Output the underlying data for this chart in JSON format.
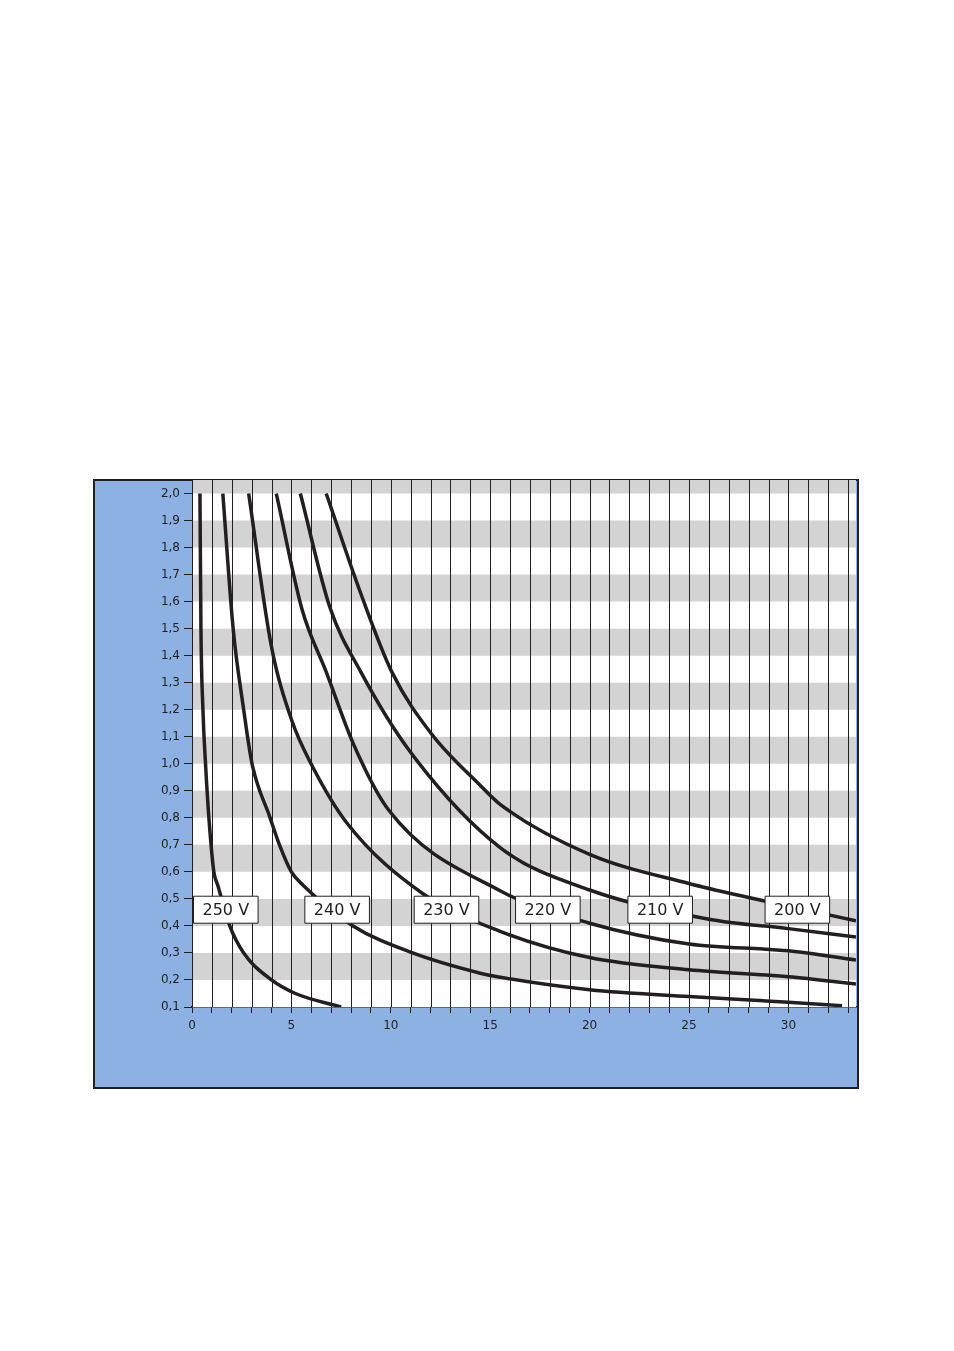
{
  "chart_data": {
    "type": "line",
    "xlim": [
      0,
      33.4
    ],
    "ylim": [
      0.1,
      2.05
    ],
    "grid": true,
    "legend": false,
    "marker": "none",
    "line_style": "solid",
    "xticks": [
      0,
      {
        "value": 1,
        "label": null
      },
      {
        "value": 2,
        "label": null
      },
      {
        "value": 3,
        "label": null
      },
      {
        "value": 4,
        "label": null
      },
      5,
      {
        "value": 6,
        "label": null
      },
      {
        "value": 7,
        "label": null
      },
      {
        "value": 8,
        "label": null
      },
      {
        "value": 9,
        "label": null
      },
      10,
      {
        "value": 11,
        "label": null
      },
      {
        "value": 12,
        "label": null
      },
      {
        "value": 13,
        "label": null
      },
      {
        "value": 14,
        "label": null
      },
      15,
      {
        "value": 16,
        "label": null
      },
      {
        "value": 17,
        "label": null
      },
      {
        "value": 18,
        "label": null
      },
      {
        "value": 19,
        "label": null
      },
      20,
      {
        "value": 21,
        "label": null
      },
      {
        "value": 22,
        "label": null
      },
      {
        "value": 23,
        "label": null
      },
      {
        "value": 24,
        "label": null
      },
      25,
      {
        "value": 26,
        "label": null
      },
      {
        "value": 27,
        "label": null
      },
      {
        "value": 28,
        "label": null
      },
      {
        "value": 29,
        "label": null
      },
      30,
      {
        "value": 31,
        "label": null
      },
      {
        "value": 32,
        "label": null
      },
      {
        "value": 33,
        "label": null
      }
    ],
    "yticks": [
      {
        "value": 0.1,
        "label": "0,1"
      },
      {
        "value": 0.2,
        "label": "0,2"
      },
      {
        "value": 0.3,
        "label": "0,3"
      },
      {
        "value": 0.4,
        "label": "0,4"
      },
      {
        "value": 0.5,
        "label": "0,5"
      },
      {
        "value": 0.6,
        "label": "0,6"
      },
      {
        "value": 0.7,
        "label": "0,7"
      },
      {
        "value": 0.8,
        "label": "0,8"
      },
      {
        "value": 0.9,
        "label": "0,9"
      },
      {
        "value": 1.0,
        "label": "1,0"
      },
      {
        "value": 1.1,
        "label": "1,1"
      },
      {
        "value": 1.2,
        "label": "1,2"
      },
      {
        "value": 1.3,
        "label": "1,3"
      },
      {
        "value": 1.4,
        "label": "1,4"
      },
      {
        "value": 1.5,
        "label": "1,5"
      },
      {
        "value": 1.6,
        "label": "1,6"
      },
      {
        "value": 1.7,
        "label": "1,7"
      },
      {
        "value": 1.8,
        "label": "1,8"
      },
      {
        "value": 1.9,
        "label": "1,9"
      },
      {
        "value": 2.0,
        "label": "2,0"
      }
    ],
    "series": [
      {
        "color": "#231f20",
        "x": [
          0.4,
          0.45,
          0.55,
          0.68,
          0.85,
          1.1,
          1.3,
          1.9,
          2.6,
          4.0,
          5.2,
          7.5
        ],
        "values": [
          2.0,
          1.5,
          1.2,
          1.0,
          0.8,
          0.6,
          0.55,
          0.4,
          0.3,
          0.2,
          0.15,
          0.1
        ]
      },
      {
        "color": "#231f20",
        "x": [
          1.55,
          2.07,
          2.6,
          3.02,
          3.93,
          4.4,
          5.0,
          5.6,
          8.1,
          11.1,
          14.5,
          15.5,
          20,
          25,
          30,
          32.7
        ],
        "values": [
          2.0,
          1.5,
          1.2,
          1.0,
          0.8,
          0.7,
          0.6,
          0.55,
          0.4,
          0.3,
          0.225,
          0.21,
          0.164,
          0.139,
          0.118,
          0.105
        ]
      },
      {
        "color": "#231f20",
        "x": [
          2.85,
          3.98,
          5.02,
          6.06,
          7.8,
          11.6,
          15.5,
          20,
          25,
          30,
          33.4
        ],
        "values": [
          2.0,
          1.44,
          1.16,
          0.99,
          0.78,
          0.52,
          0.38,
          0.283,
          0.238,
          0.212,
          0.185
        ]
      },
      {
        "color": "#231f20",
        "x": [
          4.24,
          5.54,
          6.75,
          8.14,
          9.88,
          15.5,
          20,
          25,
          30,
          33.4
        ],
        "values": [
          2.0,
          1.57,
          1.34,
          1.07,
          0.83,
          0.53,
          0.41,
          0.333,
          0.308,
          0.274
        ]
      },
      {
        "color": "#231f20",
        "x": [
          5.45,
          6.93,
          8.49,
          10.92,
          15.5,
          20,
          26,
          30,
          33.4
        ],
        "values": [
          2.0,
          1.58,
          1.34,
          1.05,
          0.69,
          0.533,
          0.425,
          0.39,
          0.359
        ]
      },
      {
        "color": "#231f20",
        "x": [
          6.75,
          8.49,
          10.05,
          12.05,
          14.5,
          15.5,
          20,
          25,
          28,
          33.4
        ],
        "values": [
          2.0,
          1.63,
          1.34,
          1.11,
          0.92,
          0.85,
          0.665,
          0.557,
          0.505,
          0.419
        ]
      }
    ],
    "annotations": [
      {
        "text": "250 V",
        "x": 1.7,
        "y": 0.46
      },
      {
        "text": "240 V",
        "x": 7.3,
        "y": 0.46
      },
      {
        "text": "230 V",
        "x": 12.8,
        "y": 0.46
      },
      {
        "text": "220 V",
        "x": 17.9,
        "y": 0.46
      },
      {
        "text": "210 V",
        "x": 23.55,
        "y": 0.46
      },
      {
        "text": "200 V",
        "x": 30.45,
        "y": 0.46
      }
    ]
  }
}
